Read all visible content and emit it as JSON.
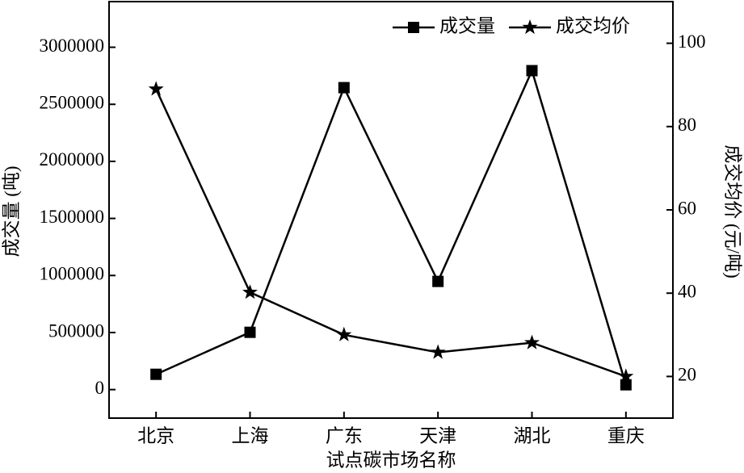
{
  "chart_data": {
    "type": "line",
    "x_label": "试点碳市场名称",
    "y_label": "成交量 (吨)",
    "y2_label": "成交均价 (元/吨)",
    "categories": [
      "北京",
      "上海",
      "广东",
      "天津",
      "湖北",
      "重庆"
    ],
    "series": [
      {
        "name": "成交量",
        "color": "#000000",
        "marker": "square",
        "values": [
          134000,
          502000,
          2646000,
          948000,
          2795000,
          42000
        ]
      },
      {
        "name": "成交均价",
        "color": "#000000",
        "marker": "star",
        "axis": "y2",
        "values": [
          89,
          40.2,
          30,
          25.8,
          28.1,
          20
        ]
      }
    ],
    "ylim": [
      -250000,
      3400000
    ],
    "yticks": [
      0,
      500000,
      1000000,
      1500000,
      2000000,
      2500000,
      3000000
    ],
    "y2lim": [
      10,
      110
    ],
    "y2ticks": [
      20,
      40,
      60,
      80,
      100
    ],
    "legend": "upper right"
  }
}
